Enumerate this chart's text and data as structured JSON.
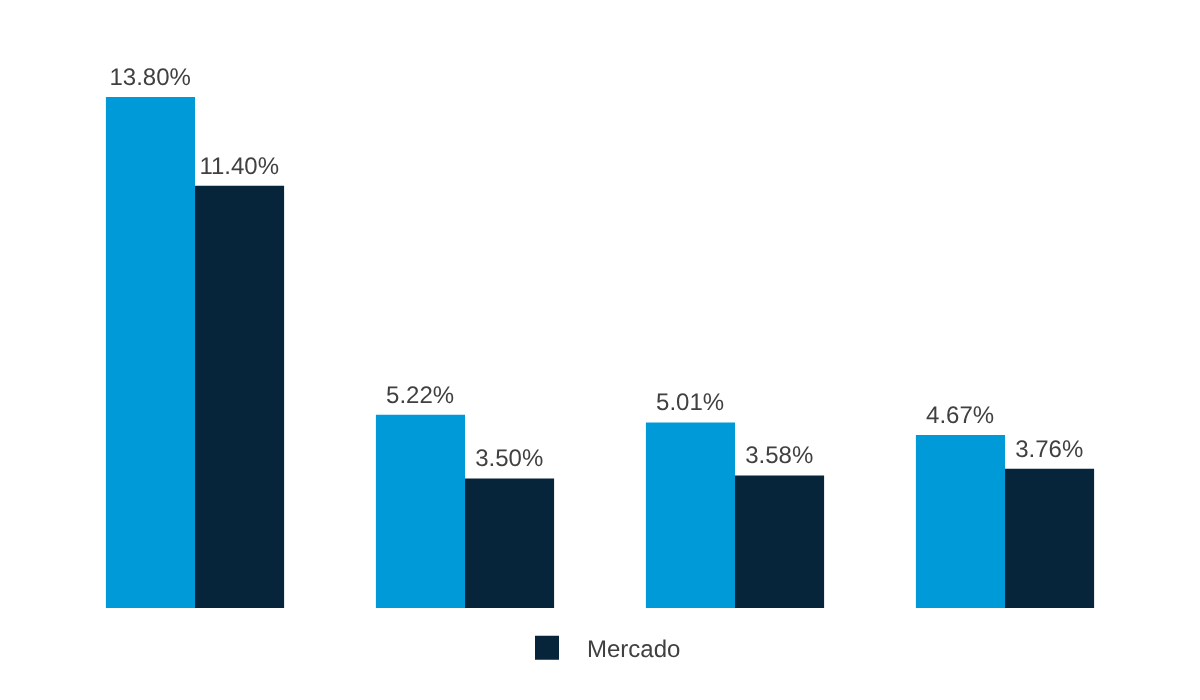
{
  "chart_data": {
    "type": "bar",
    "categories": [
      null,
      null,
      null,
      null
    ],
    "series": [
      {
        "color": "#009ad8",
        "values": [
          13.8,
          5.22,
          5.01,
          4.67
        ],
        "value_labels": [
          "13.80%",
          "5.22%",
          "5.01%",
          "4.67%"
        ]
      },
      {
        "name": "Mercado",
        "color": "#06253a",
        "values": [
          11.4,
          3.5,
          3.58,
          3.76
        ],
        "value_labels": [
          "11.40%",
          "3.50%",
          "3.58%",
          "3.76%"
        ]
      }
    ],
    "legend": "bottom"
  }
}
